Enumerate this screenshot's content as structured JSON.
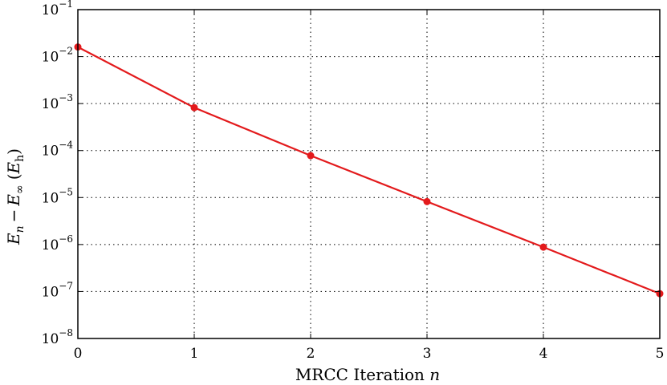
{
  "chart_data": {
    "type": "line",
    "title": "",
    "xlabel": {
      "text": "MRCC Iteration",
      "var": "n"
    },
    "ylabel": {
      "E": "E",
      "n_sub": "n",
      "minus": "−",
      "inf_sub": "∞",
      "open": "(",
      "h_sub": "h",
      "close": ")"
    },
    "y_scale": "log",
    "xlim": [
      0,
      5
    ],
    "ylim": [
      1e-08,
      0.1
    ],
    "grid": true,
    "grid_style": "dotted",
    "x_ticks": [
      0,
      1,
      2,
      3,
      4,
      5
    ],
    "x_tick_labels": [
      "0",
      "1",
      "2",
      "3",
      "4",
      "5"
    ],
    "y_tick_exponents": [
      -1,
      -2,
      -3,
      -4,
      -5,
      -6,
      -7,
      -8
    ],
    "y_tick_base": "10",
    "y_tick_exponent_labels": [
      "−1",
      "−2",
      "−3",
      "−4",
      "−5",
      "−6",
      "−7",
      "−8"
    ],
    "line_color": "#e31a1c",
    "series": [
      {
        "x": [
          0,
          1,
          2,
          3,
          4,
          5
        ],
        "values": [
          0.016,
          0.00082,
          7.8e-05,
          8.2e-06,
          8.8e-07,
          9e-08
        ]
      }
    ]
  }
}
